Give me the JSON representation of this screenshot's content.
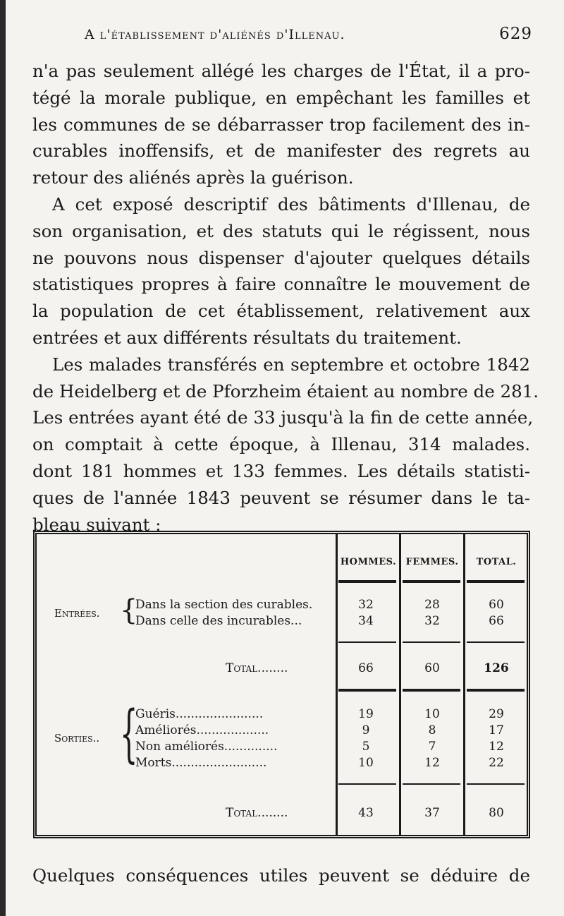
{
  "header": {
    "title": "A l'établissement d'aliénés d'Illenau.",
    "page_number": "629"
  },
  "body_lines": [
    "n'a pas seulement allégé les charges de l'État, il a pro-",
    "tégé la morale publique, en empêchant les familles et",
    "les communes de se débarrasser trop facilement des in-",
    "curables inoffensifs, et de manifester des regrets au",
    "retour des aliénés après la guérison.",
    "A cet exposé descriptif des bâtiments d'Illenau, de",
    "son organisation, et des statuts qui le régissent, nous",
    "ne pouvons nous dispenser d'ajouter quelques détails",
    "statistiques propres à faire connaître le mouvement de",
    "la population de cet établissement, relativement aux",
    "entrées et aux différents résultats du traitement.",
    "Les malades transférés en septembre et octobre 1842",
    "de Heidelberg et de Pforzheim étaient au nombre de 281.",
    "Les entrées ayant été de 33 jusqu'à la fin de cette année,",
    "on comptait à cette époque, à Illenau, 314 malades.",
    "dont 181 hommes et 133 femmes. Les détails statisti-",
    "ques de l'année 1843 peuvent se résumer dans le ta-",
    "bleau suivant :"
  ],
  "table": {
    "columns": [
      "HOMMES.",
      "FEMMES.",
      "TOTAL."
    ],
    "entrees": {
      "group": "Entrées.",
      "rows": [
        {
          "label": "Dans la section des curables.",
          "values": [
            "32",
            "28",
            "60"
          ]
        },
        {
          "label": "Dans celle des incurables...",
          "values": [
            "34",
            "32",
            "66"
          ]
        }
      ],
      "total": {
        "label": "Total........",
        "values": [
          "66",
          "60",
          "126"
        ]
      }
    },
    "sorties": {
      "group": "Sorties..",
      "rows": [
        {
          "label": "Guéris.......................",
          "values": [
            "19",
            "10",
            "29"
          ]
        },
        {
          "label": "Améliorés...................",
          "values": [
            "9",
            "8",
            "17"
          ]
        },
        {
          "label": "Non améliorés..............",
          "values": [
            "5",
            "7",
            "12"
          ]
        },
        {
          "label": "Morts.........................",
          "values": [
            "10",
            "12",
            "22"
          ]
        }
      ],
      "total": {
        "label": "Total........",
        "values": [
          "43",
          "37",
          "80"
        ]
      }
    }
  },
  "closing_line": "Quelques conséquences utiles peuvent se déduire de"
}
